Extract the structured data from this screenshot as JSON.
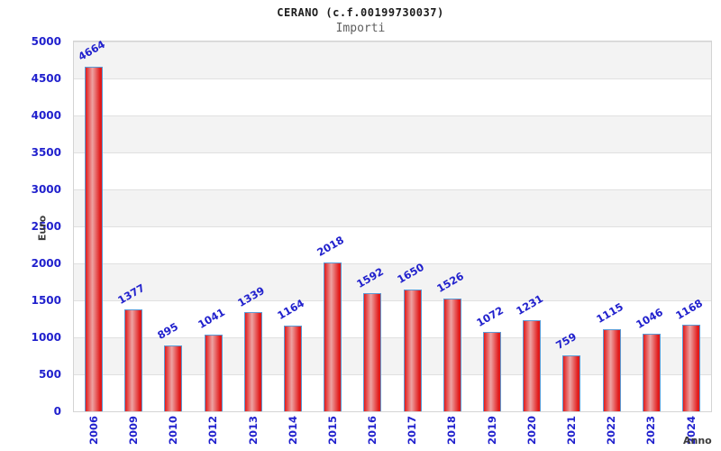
{
  "chart_data": {
    "type": "bar",
    "title": "CERANO (c.f.00199730037)",
    "subtitle": "Importi",
    "xlabel": "Anno",
    "ylabel": "Euro",
    "categories": [
      "2006",
      "2009",
      "2010",
      "2012",
      "2013",
      "2014",
      "2015",
      "2016",
      "2017",
      "2018",
      "2019",
      "2020",
      "2021",
      "2022",
      "2023",
      "2024"
    ],
    "values": [
      4664,
      1377,
      895,
      1041,
      1339,
      1164,
      2018,
      1592,
      1650,
      1526,
      1072,
      1231,
      759,
      1115,
      1046,
      1168
    ],
    "ylim": [
      0,
      5000
    ],
    "yticks": [
      0,
      500,
      1000,
      1500,
      2000,
      2500,
      3000,
      3500,
      4000,
      4500,
      5000
    ],
    "grid": true,
    "legend_position": "none",
    "bands": "alternating horizontal gray/white stripes every 500"
  },
  "colors": {
    "label_blue": "#2121cd",
    "bar_edge": "#e11b1b",
    "bar_highlight": "#eda3a3",
    "bar_border": "#5b9bd5",
    "band_gray": "#f3f3f3",
    "grid_line": "#e0e0e0",
    "plot_border": "#d4d4d4",
    "axis_title_gray": "#3c3c3c",
    "title_color": "#1c1c1c",
    "subtitle_color": "#5f5f5f"
  }
}
